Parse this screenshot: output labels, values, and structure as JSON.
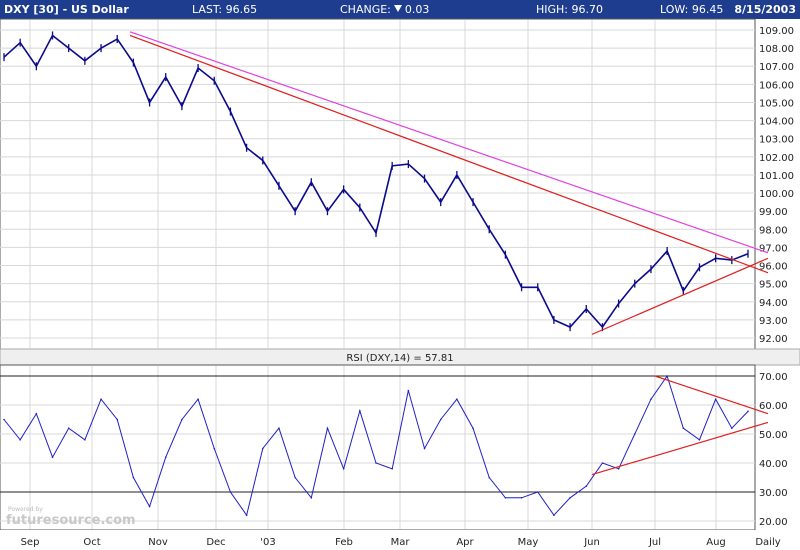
{
  "header": {
    "title": "DXY [30] - US Dollar",
    "last": "LAST: 96.65",
    "change_label": "CHANGE:",
    "change_value": "0.03",
    "high": "HIGH: 96.70",
    "low": "LOW: 96.45",
    "date": "8/15/2003"
  },
  "rsi_label": "RSI (DXY,14) = 57.81",
  "watermark": "futuresource.com",
  "watermark_small": "Powered by",
  "colors": {
    "header_bg": "#1f3d8f",
    "price_line": "#0a0a8c",
    "rsi_line": "#2020c8",
    "trendline_red": "#e02020",
    "trendline_magenta": "#e040e0",
    "grid": "#d8d8d8"
  },
  "chart_data": [
    {
      "type": "line",
      "title": "DXY [30] - US Dollar",
      "ylim": [
        91.5,
        109.5
      ],
      "y_ticks": [
        "92.00",
        "93.00",
        "94.00",
        "95.00",
        "96.00",
        "97.00",
        "98.00",
        "99.00",
        "100.00",
        "101.00",
        "102.00",
        "103.00",
        "104.00",
        "105.00",
        "106.00",
        "107.00",
        "108.00",
        "109.00"
      ],
      "x_ticks": [
        "Sep",
        "Oct",
        "Nov",
        "Dec",
        "'03",
        "Feb",
        "Mar",
        "Apr",
        "May",
        "Jun",
        "Jul",
        "Aug",
        "Daily"
      ],
      "x": [
        "Sep",
        "Sep",
        "Sep",
        "Sep",
        "Oct",
        "Oct",
        "Oct",
        "Oct",
        "Nov",
        "Nov",
        "Nov",
        "Nov",
        "Dec",
        "Dec",
        "Dec",
        "Dec",
        "'03",
        "'03",
        "'03",
        "'03",
        "Feb",
        "Feb",
        "Feb",
        "Feb",
        "Mar",
        "Mar",
        "Mar",
        "Mar",
        "Apr",
        "Apr",
        "Apr",
        "Apr",
        "May",
        "May",
        "May",
        "May",
        "Jun",
        "Jun",
        "Jun",
        "Jun",
        "Jul",
        "Jul",
        "Jul",
        "Jul",
        "Aug",
        "Aug",
        "Aug"
      ],
      "series": [
        {
          "name": "DXY",
          "values": [
            107.5,
            108.3,
            107.0,
            108.7,
            108.0,
            107.3,
            108.0,
            108.5,
            107.2,
            105.0,
            106.4,
            104.8,
            106.9,
            106.2,
            104.5,
            102.5,
            101.8,
            100.4,
            99.0,
            100.6,
            99.0,
            100.2,
            99.2,
            97.8,
            101.5,
            101.6,
            100.8,
            99.5,
            101.0,
            99.5,
            98.0,
            96.6,
            94.8,
            94.8,
            93.0,
            92.6,
            93.6,
            92.6,
            93.9,
            95.0,
            95.8,
            96.8,
            94.6,
            95.9,
            96.4,
            96.3,
            96.65
          ]
        }
      ],
      "trendlines": [
        {
          "color": "red",
          "from": [
            108.7,
            "Oct"
          ],
          "to": [
            95.6,
            "Daily"
          ]
        },
        {
          "color": "magenta",
          "from": [
            108.9,
            "Oct"
          ],
          "to": [
            96.7,
            "Daily"
          ]
        },
        {
          "color": "red",
          "from": [
            92.2,
            "Jun"
          ],
          "to": [
            96.4,
            "Daily"
          ]
        }
      ],
      "grid": true
    },
    {
      "type": "line",
      "title": "RSI (DXY,14) = 57.81",
      "ylim": [
        18,
        72
      ],
      "y_ticks": [
        "20.00",
        "30.00",
        "40.00",
        "50.00",
        "60.00",
        "70.00"
      ],
      "reference_lines": [
        30,
        70
      ],
      "series": [
        {
          "name": "RSI (DXY,14)",
          "values": [
            55,
            48,
            57,
            42,
            52,
            48,
            62,
            55,
            35,
            25,
            42,
            55,
            62,
            45,
            30,
            22,
            45,
            52,
            35,
            28,
            52,
            38,
            58,
            40,
            38,
            65,
            45,
            55,
            62,
            52,
            35,
            28,
            28,
            30,
            22,
            28,
            32,
            40,
            38,
            50,
            62,
            70,
            52,
            48,
            62,
            52,
            57.81
          ]
        }
      ],
      "trendlines": [
        {
          "color": "red",
          "from": [
            70,
            "Jul"
          ],
          "to": [
            57,
            "Daily"
          ]
        },
        {
          "color": "red",
          "from": [
            36,
            "Jun"
          ],
          "to": [
            54,
            "Daily"
          ]
        }
      ],
      "grid": true
    }
  ]
}
